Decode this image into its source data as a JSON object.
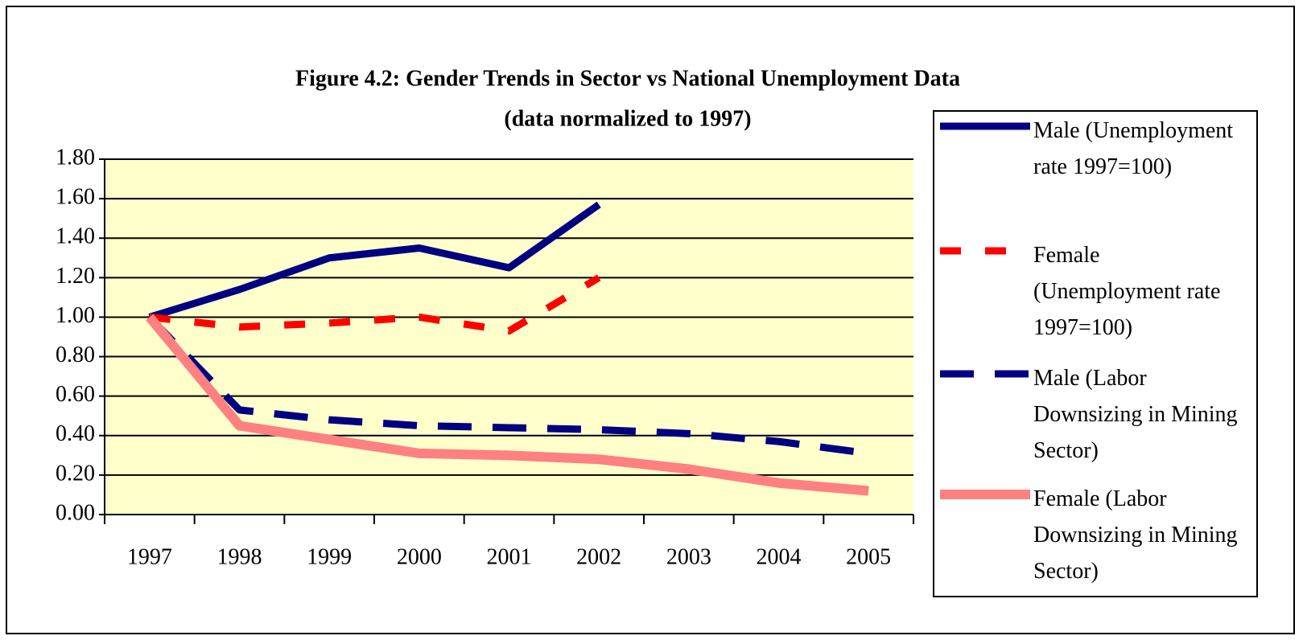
{
  "chart_data": {
    "type": "line",
    "title": "Figure 4.2: Gender Trends in Sector vs National Unemployment Data",
    "subtitle": "(data normalized to 1997)",
    "categories": [
      "1997",
      "1998",
      "1999",
      "2000",
      "2001",
      "2002",
      "2003",
      "2004",
      "2005"
    ],
    "series": [
      {
        "name": "Male (Unemployment rate 1997=100)",
        "color": "#000080",
        "style": "solid",
        "values": [
          1.0,
          1.14,
          1.3,
          1.35,
          1.25,
          1.57,
          null,
          null,
          null
        ]
      },
      {
        "name": "Female (Unemployment rate 1997=100)",
        "color": "#ff0000",
        "style": "dashed",
        "values": [
          1.0,
          0.95,
          0.97,
          1.0,
          0.93,
          1.2,
          null,
          null,
          null
        ]
      },
      {
        "name": "Male (Labor Downsizing in Mining Sector)",
        "color": "#000080",
        "style": "dashed",
        "values": [
          1.0,
          0.53,
          0.48,
          0.45,
          0.44,
          0.43,
          0.41,
          0.37,
          0.31
        ]
      },
      {
        "name": "Female (Labor Downsizing in Mining Sector)",
        "color": "#ff8080",
        "style": "solid",
        "values": [
          1.0,
          0.45,
          0.38,
          0.31,
          0.3,
          0.28,
          0.23,
          0.16,
          0.12
        ]
      }
    ],
    "ylim": [
      0,
      1.8
    ],
    "yticks": [
      {
        "value": 0,
        "label": "0.00"
      },
      {
        "value": 0.2,
        "label": "0.20"
      },
      {
        "value": 0.4,
        "label": "0.40"
      },
      {
        "value": 0.6,
        "label": "0.60"
      },
      {
        "value": 0.8,
        "label": "0.80"
      },
      {
        "value": 1.0,
        "label": "1.00"
      },
      {
        "value": 1.2,
        "label": "1.20"
      },
      {
        "value": 1.4,
        "label": "1.40"
      },
      {
        "value": 1.6,
        "label": "1.60"
      },
      {
        "value": 1.8,
        "label": "1.80"
      }
    ],
    "grid": true,
    "plot_background": "#ffffcc",
    "legend": "right"
  }
}
